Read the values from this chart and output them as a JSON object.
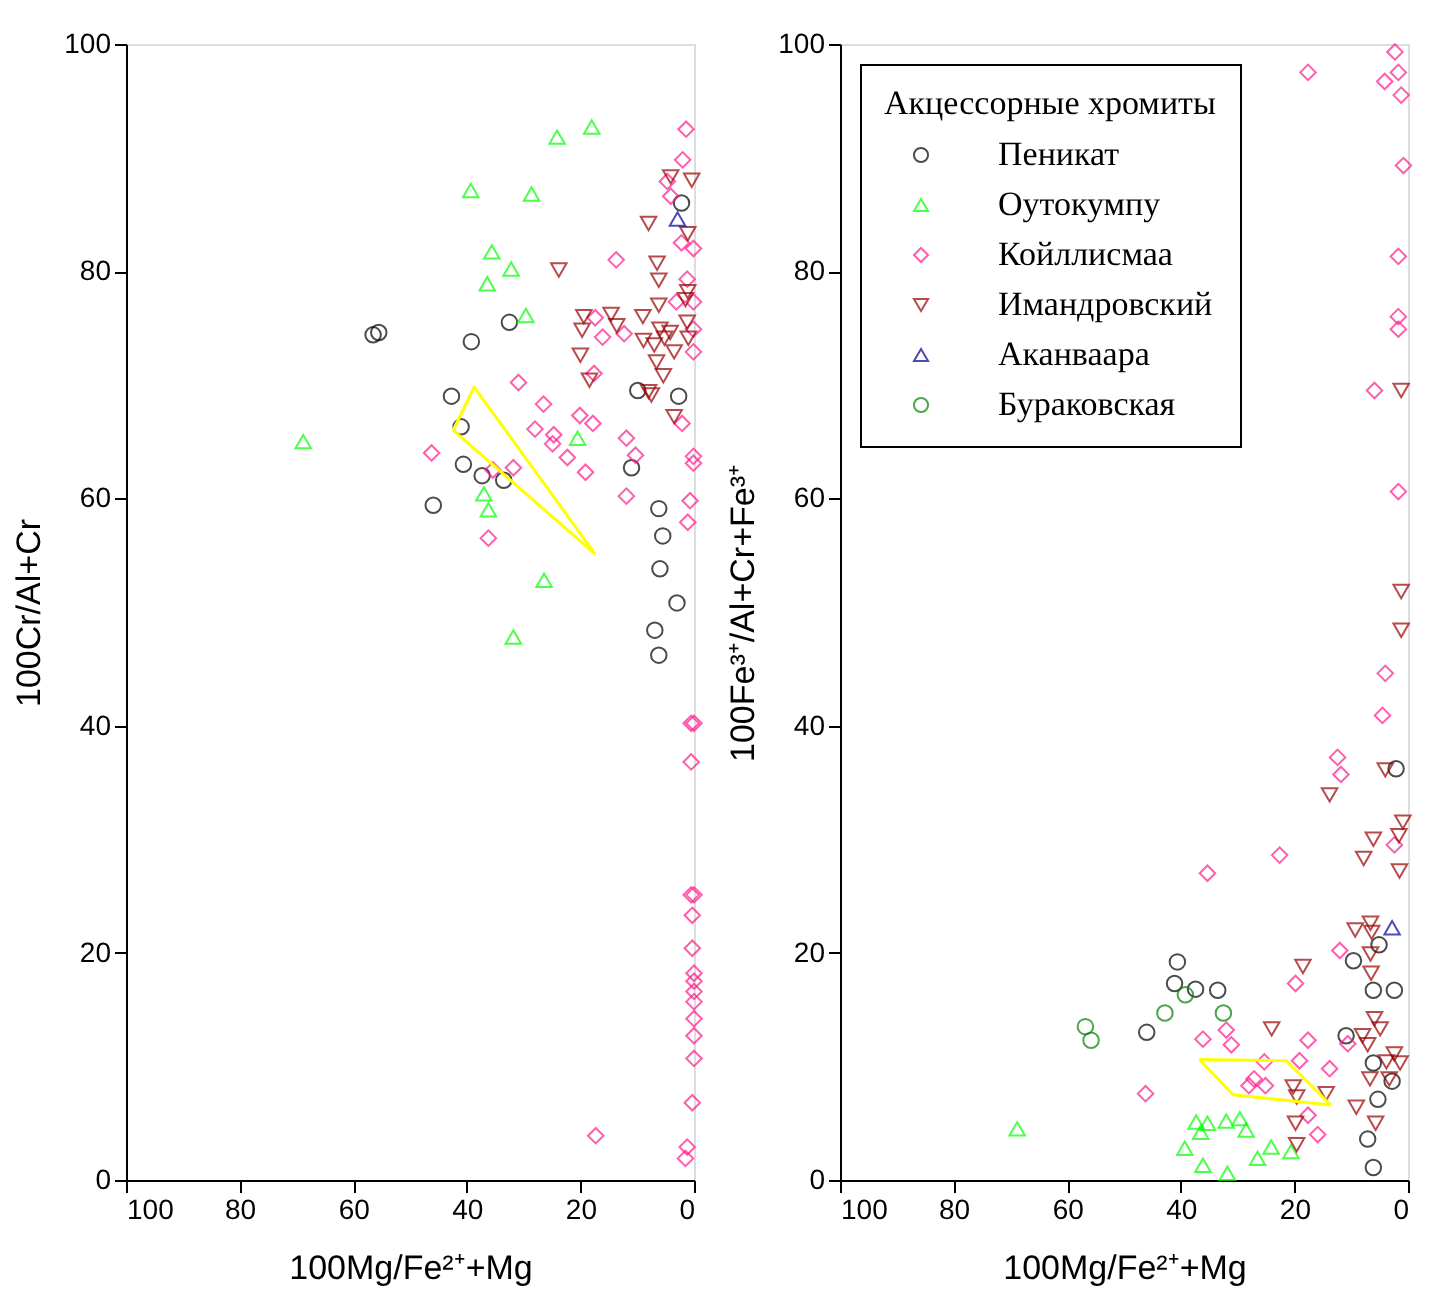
{
  "chart_data": [
    {
      "type": "scatter",
      "xlabel": "100Mg/Fe²⁺+Mg",
      "ylabel": "100Cr/Al+Cr",
      "xlim": [
        100,
        0
      ],
      "ylim": [
        0,
        100
      ],
      "xticks": [
        100,
        80,
        60,
        40,
        20,
        0
      ],
      "yticks": [
        0,
        20,
        40,
        60,
        80,
        100
      ],
      "grid": false,
      "legend": false,
      "series": [
        {
          "color": "#000000",
          "marker": "circle",
          "x": [
            56.5,
            55.5,
            39.2,
            32.5,
            42.7,
            41.0,
            40.6,
            37.3,
            33.5,
            45.9,
            11.0,
            9.9,
            2.7,
            2.2,
            6.2,
            5.5,
            6.0,
            3.0,
            6.9,
            6.2
          ],
          "values": [
            74.4,
            74.6,
            73.8,
            75.5,
            69.0,
            66.3,
            63.0,
            62.0,
            61.6,
            59.4,
            62.7,
            69.5,
            69.0,
            86.0,
            59.1,
            56.7,
            53.8,
            50.8,
            48.4,
            46.2
          ]
        },
        {
          "color": "#00ff00",
          "marker": "triangle",
          "x": [
            18.0,
            24.1,
            39.3,
            28.6,
            35.6,
            32.2,
            36.4,
            29.6,
            68.8,
            20.5,
            37.0,
            36.2,
            26.4,
            31.8
          ],
          "values": [
            92.7,
            91.8,
            87.1,
            86.8,
            81.7,
            80.2,
            78.9,
            76.1,
            65.0,
            65.3,
            60.4,
            59.0,
            52.8,
            47.8
          ]
        },
        {
          "color": "#ff1a8c",
          "marker": "diamond",
          "x": [
            1.4,
            2.0,
            4.7,
            4.1,
            2.2,
            0.1,
            1.2,
            3.1,
            0.1,
            0.1,
            0.1,
            2.1,
            0.1,
            0.1,
            0.7,
            1.1,
            13.7,
            17.4,
            16.1,
            12.3,
            17.6,
            30.9,
            26.5,
            28.0,
            20.1,
            17.8,
            24.7,
            24.9,
            22.3,
            19.1,
            11.9,
            10.3,
            11.9,
            46.2,
            35.4,
            31.8,
            36.2,
            0.5,
            0.0,
            0.5,
            0.5,
            0.0,
            0.3,
            0.3,
            0.0,
            0.0,
            0.0,
            0.0,
            0.0,
            0.0,
            0.0,
            0.3,
            17.3,
            1.2,
            1.5
          ],
          "values": [
            92.5,
            89.8,
            87.9,
            86.6,
            82.5,
            82.0,
            79.3,
            77.3,
            77.3,
            74.9,
            72.9,
            66.6,
            63.7,
            63.1,
            59.8,
            57.9,
            81.0,
            75.9,
            74.2,
            74.5,
            71.0,
            70.2,
            68.3,
            66.1,
            67.3,
            66.6,
            65.6,
            64.8,
            63.6,
            62.3,
            65.3,
            63.8,
            60.2,
            64.0,
            62.5,
            62.7,
            56.5,
            40.2,
            40.2,
            36.8,
            25.1,
            25.1,
            23.3,
            20.4,
            18.2,
            17.5,
            16.6,
            15.7,
            14.2,
            12.7,
            10.7,
            6.8,
            3.9,
            2.9,
            1.9
          ]
        },
        {
          "color": "#990000",
          "marker": "triangle-down",
          "x": [
            4.1,
            0.4,
            8.0,
            1.1,
            6.5,
            23.8,
            6.2,
            1.1,
            1.5,
            6.2,
            19.4,
            14.6,
            9.0,
            1.2,
            19.7,
            13.6,
            6.0,
            4.2,
            8.9,
            7.0,
            5.2,
            1.0,
            20.0,
            6.6,
            3.5,
            5.4,
            18.4,
            8.0,
            7.5,
            3.5
          ],
          "values": [
            88.3,
            88.0,
            84.2,
            83.3,
            80.7,
            80.1,
            79.2,
            78.2,
            77.5,
            77.0,
            76.0,
            76.2,
            76.0,
            75.5,
            74.8,
            75.2,
            74.9,
            74.6,
            73.9,
            73.5,
            74.1,
            74.1,
            72.6,
            72.0,
            72.9,
            70.8,
            70.4,
            69.4,
            69.1,
            67.2
          ]
        },
        {
          "color": "#000099",
          "marker": "triangle",
          "x": [
            2.9
          ],
          "values": [
            84.6
          ]
        },
        {
          "type": "line",
          "color": "#ffff00",
          "marker": "none",
          "x": [
            42.4,
            38.7,
            17.4
          ],
          "values": [
            66.0,
            69.8,
            55.1
          ]
        },
        {
          "type": "line",
          "color": "#ffff00",
          "marker": "none",
          "x": [
            42.4,
            17.4
          ],
          "values": [
            66.0,
            55.1
          ]
        }
      ]
    },
    {
      "type": "scatter",
      "xlabel": "100Mg/Fe²⁺+Mg",
      "ylabel": "100Fe³⁺/Al+Cr+Fe³⁺",
      "xlim": [
        100,
        0
      ],
      "ylim": [
        0,
        100
      ],
      "xticks": [
        100,
        80,
        60,
        40,
        20,
        0
      ],
      "yticks": [
        0,
        20,
        40,
        60,
        80,
        100
      ],
      "grid": false,
      "legend": "top left",
      "legend_title": "Акцессорные хромиты",
      "series": [
        {
          "name": "Пеникат",
          "color": "#000000",
          "marker": "circle",
          "x": [
            40.6,
            41.1,
            37.4,
            33.5,
            46.0,
            9.6,
            5.1,
            6.1,
            2.4,
            10.9,
            6.1,
            2.8,
            5.3,
            7.1,
            6.1,
            2.1
          ],
          "values": [
            19.2,
            17.3,
            16.8,
            16.7,
            13.0,
            19.3,
            20.7,
            16.7,
            16.7,
            12.7,
            10.3,
            8.7,
            7.1,
            3.6,
            1.1,
            36.2
          ]
        },
        {
          "name": "Оутокумпу",
          "color": "#00ff00",
          "marker": "triangle",
          "x": [
            68.8,
            37.3,
            35.3,
            36.5,
            32.0,
            29.6,
            28.5,
            39.3,
            36.1,
            31.8,
            26.5,
            24.1,
            20.6
          ],
          "values": [
            4.5,
            5.1,
            5.0,
            4.2,
            5.2,
            5.4,
            4.4,
            2.8,
            1.3,
            0.6,
            1.9,
            2.9,
            2.5
          ]
        },
        {
          "name": "Койллисмаа",
          "color": "#ff1a8c",
          "marker": "diamond",
          "x": [
            4.0,
            4.5,
            12.4,
            11.8,
            22.6,
            35.3,
            2.4,
            12.0,
            19.8,
            36.1,
            32.0,
            31.1,
            17.6,
            13.8,
            19.1,
            25.3,
            27.1,
            28.0,
            25.1,
            46.2,
            17.6,
            15.9,
            10.6,
            17.6,
            2.3,
            4.1,
            1.7,
            1.2,
            0.8,
            1.7,
            1.7,
            1.7,
            5.9,
            1.7
          ],
          "values": [
            44.6,
            40.9,
            37.2,
            35.7,
            28.6,
            27.0,
            29.5,
            20.2,
            17.3,
            12.4,
            13.2,
            11.9,
            12.3,
            9.8,
            10.5,
            10.4,
            8.9,
            8.3,
            8.3,
            7.6,
            5.7,
            4.0,
            12.0,
            97.5,
            99.3,
            96.7,
            97.5,
            95.5,
            89.3,
            81.3,
            76.0,
            74.9,
            69.5,
            60.6
          ]
        },
        {
          "name": "Имандровский",
          "color": "#990000",
          "marker": "triangle-down",
          "x": [
            4.0,
            0.9,
            6.1,
            1.6,
            7.8,
            1.5,
            13.8,
            9.3,
            6.6,
            6.4,
            6.6,
            6.5,
            18.5,
            5.9,
            8.0,
            4.9,
            7.1,
            2.4,
            3.8,
            1.4,
            6.7,
            3.3,
            24.0,
            20.2,
            19.6,
            14.4,
            9.1,
            5.7,
            19.8,
            19.6,
            1.2,
            1.2,
            1.2
          ],
          "values": [
            36.1,
            31.5,
            30.0,
            30.3,
            28.3,
            27.2,
            33.9,
            22.0,
            22.6,
            21.8,
            19.9,
            18.2,
            18.8,
            14.2,
            12.7,
            13.3,
            11.9,
            11.1,
            10.4,
            10.3,
            8.9,
            8.9,
            13.3,
            8.2,
            7.3,
            7.6,
            6.4,
            5.0,
            5.0,
            3.1,
            69.5,
            51.8,
            48.4
          ]
        },
        {
          "name": "Аканваара",
          "color": "#000099",
          "marker": "triangle",
          "x": [
            2.8
          ],
          "values": [
            22.2
          ]
        },
        {
          "name": "Бураковская",
          "color": "#008000",
          "marker": "circle",
          "x": [
            56.8,
            55.8,
            42.8,
            39.2,
            32.5
          ],
          "values": [
            13.5,
            12.3,
            14.7,
            16.3,
            14.7
          ]
        },
        {
          "type": "line",
          "color": "#ffff00",
          "marker": "none",
          "x": [
            36.7,
            21.4,
            13.6
          ],
          "values": [
            10.6,
            10.5,
            6.6
          ]
        },
        {
          "type": "line",
          "color": "#ffff00",
          "marker": "none",
          "x": [
            36.7,
            30.8,
            13.6
          ],
          "values": [
            10.6,
            7.5,
            6.6
          ]
        }
      ]
    }
  ]
}
